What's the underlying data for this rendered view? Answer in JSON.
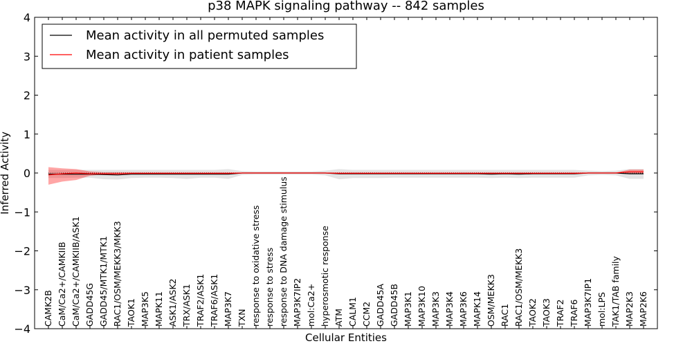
{
  "chart_data": {
    "type": "line",
    "title": "p38 MAPK signaling pathway -- 842 samples",
    "xlabel": "Cellular Entities",
    "ylabel": "Inferred Activity",
    "ylim": [
      -4,
      4
    ],
    "yticks": [
      -4,
      -3,
      -2,
      -1,
      0,
      1,
      2,
      3,
      4
    ],
    "ytick_labels": [
      "−4",
      "−3",
      "−2",
      "−1",
      "0",
      "1",
      "2",
      "3",
      "4"
    ],
    "legend_position": "top-left",
    "categories": [
      "CAMK2B",
      "CaM/Ca2+/CAMKIIB",
      "CaM/Ca2+/CAMKIIB/ASK1",
      "GADD45G",
      "GADD45/MTK1/MTK1",
      "RAC1/OSM/MEKK3/MKK3",
      "TAOK1",
      "MAP3K5",
      "MAPK11",
      "ASK1/ASK2",
      "TRX/ASK1",
      "TRAF2/ASK1",
      "TRAF6/ASK1",
      "MAP3K7",
      "TXN",
      "response to oxidative stress",
      "response to stress",
      "response to DNA damage stimulus",
      "MAP3K7IP2",
      "mol:Ca2+",
      "hyperosmotic response",
      "ATM",
      "CALM1",
      "CCM2",
      "GADD45A",
      "GADD45B",
      "MAP3K1",
      "MAP3K10",
      "MAP3K3",
      "MAP3K4",
      "MAP3K6",
      "MAPK14",
      "OSM/MEKK3",
      "RAC1",
      "RAC1/OSM/MEKK3",
      "TAOK2",
      "TAOK3",
      "TRAF2",
      "TRAF6",
      "MAP3K7IP1",
      "mol:LPS",
      "TAK1/TAB family",
      "MAP2K3",
      "MAP2K6"
    ],
    "series": [
      {
        "name": "Mean activity in all permuted samples",
        "color": "#000000",
        "band_color": "#808080",
        "values": [
          -0.03,
          -0.03,
          -0.03,
          -0.03,
          -0.04,
          -0.05,
          -0.03,
          -0.03,
          -0.03,
          -0.03,
          -0.03,
          -0.03,
          -0.03,
          -0.03,
          0.0,
          0.0,
          0.0,
          0.0,
          0.0,
          0.0,
          0.0,
          -0.02,
          -0.02,
          -0.02,
          -0.02,
          -0.02,
          -0.02,
          -0.02,
          -0.02,
          -0.02,
          -0.02,
          -0.02,
          -0.03,
          -0.02,
          -0.03,
          -0.02,
          -0.02,
          -0.02,
          -0.02,
          0.0,
          0.0,
          0.0,
          -0.02,
          -0.02
        ],
        "lower": [
          -0.13,
          -0.13,
          -0.12,
          -0.12,
          -0.16,
          -0.17,
          -0.13,
          -0.12,
          -0.12,
          -0.13,
          -0.15,
          -0.12,
          -0.12,
          -0.15,
          -0.05,
          -0.04,
          -0.04,
          -0.04,
          -0.04,
          -0.04,
          -0.06,
          -0.16,
          -0.13,
          -0.13,
          -0.13,
          -0.12,
          -0.12,
          -0.12,
          -0.12,
          -0.12,
          -0.12,
          -0.12,
          -0.13,
          -0.12,
          -0.13,
          -0.12,
          -0.12,
          -0.12,
          -0.12,
          -0.06,
          -0.05,
          -0.06,
          -0.15,
          -0.15
        ],
        "upper": [
          0.08,
          0.08,
          0.08,
          0.08,
          0.08,
          0.08,
          0.08,
          0.08,
          0.08,
          0.08,
          0.08,
          0.08,
          0.08,
          0.1,
          0.05,
          0.04,
          0.04,
          0.04,
          0.04,
          0.04,
          0.06,
          0.1,
          0.08,
          0.08,
          0.08,
          0.08,
          0.08,
          0.08,
          0.08,
          0.08,
          0.08,
          0.08,
          0.08,
          0.08,
          0.08,
          0.08,
          0.08,
          0.08,
          0.08,
          0.06,
          0.05,
          0.06,
          0.1,
          0.1
        ]
      },
      {
        "name": "Mean activity in patient samples",
        "color": "#ff0000",
        "band_color": "#ff0000",
        "values": [
          -0.05,
          -0.02,
          0.0,
          -0.02,
          -0.02,
          -0.02,
          -0.01,
          -0.01,
          -0.01,
          -0.01,
          -0.01,
          -0.01,
          -0.01,
          -0.01,
          0.0,
          0.0,
          0.0,
          0.0,
          0.0,
          0.0,
          0.0,
          -0.01,
          -0.01,
          -0.01,
          -0.01,
          -0.01,
          -0.01,
          -0.01,
          -0.01,
          -0.01,
          -0.01,
          -0.01,
          -0.01,
          -0.01,
          -0.01,
          -0.01,
          -0.01,
          -0.01,
          -0.01,
          0.0,
          0.0,
          0.0,
          0.03,
          0.03
        ],
        "lower": [
          -0.3,
          -0.22,
          -0.18,
          -0.07,
          -0.03,
          -0.04,
          -0.02,
          -0.02,
          -0.02,
          -0.02,
          -0.02,
          -0.02,
          -0.02,
          -0.02,
          -0.01,
          -0.01,
          -0.01,
          -0.01,
          -0.01,
          -0.01,
          -0.01,
          -0.02,
          -0.02,
          -0.02,
          -0.02,
          -0.02,
          -0.02,
          -0.02,
          -0.02,
          -0.02,
          -0.02,
          -0.02,
          -0.02,
          -0.02,
          -0.02,
          -0.02,
          -0.02,
          -0.02,
          -0.02,
          -0.01,
          -0.01,
          -0.01,
          -0.02,
          -0.02
        ],
        "upper": [
          0.15,
          0.12,
          0.1,
          0.04,
          0.02,
          0.02,
          0.02,
          0.02,
          0.02,
          0.02,
          0.02,
          0.02,
          0.02,
          0.02,
          0.01,
          0.01,
          0.01,
          0.01,
          0.01,
          0.01,
          0.01,
          0.02,
          0.02,
          0.02,
          0.02,
          0.02,
          0.02,
          0.02,
          0.02,
          0.02,
          0.02,
          0.02,
          0.02,
          0.02,
          0.02,
          0.02,
          0.02,
          0.02,
          0.02,
          0.01,
          0.01,
          0.01,
          0.09,
          0.09
        ]
      }
    ]
  }
}
